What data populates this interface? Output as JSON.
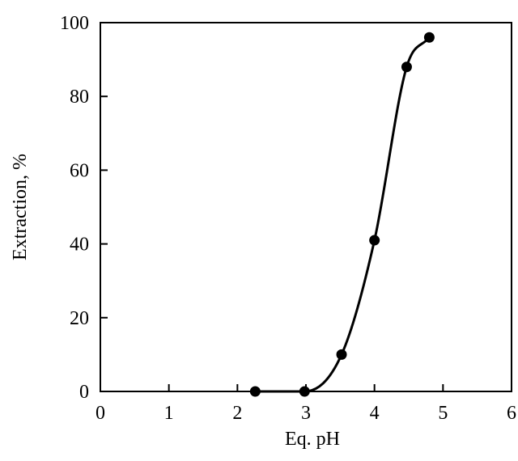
{
  "chart_data": {
    "type": "scatter",
    "title": "",
    "xlabel": "Eq. pH",
    "ylabel": "Extraction, %",
    "xlim": [
      0,
      6
    ],
    "ylim": [
      0,
      100
    ],
    "xticks": [
      "0",
      "1",
      "2",
      "3",
      "4",
      "5",
      "6"
    ],
    "yticks": [
      "0",
      "20",
      "40",
      "60",
      "80",
      "100"
    ],
    "grid": false,
    "legend": "none",
    "series": [
      {
        "marker": "filled-circle",
        "line": "smooth",
        "color": "#000000",
        "points": [
          {
            "x": 2.26,
            "y": 0
          },
          {
            "x": 2.98,
            "y": 0
          },
          {
            "x": 3.52,
            "y": 10
          },
          {
            "x": 4.0,
            "y": 41
          },
          {
            "x": 4.47,
            "y": 88
          },
          {
            "x": 4.8,
            "y": 96
          }
        ]
      }
    ]
  }
}
